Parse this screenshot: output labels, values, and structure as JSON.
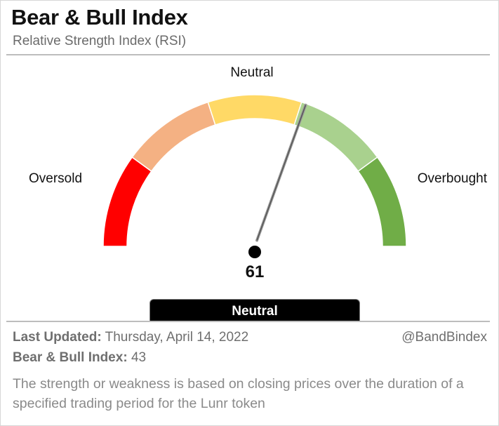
{
  "header": {
    "title": "Bear & Bull Index",
    "subtitle": "Relative Strength Index (RSI)"
  },
  "chart_data": {
    "type": "gauge",
    "min": 0,
    "max": 100,
    "value": 61,
    "value_label": "61",
    "status": "Neutral",
    "zone_labels": {
      "left": "Oversold",
      "top": "Neutral",
      "right": "Overbought"
    },
    "segments": [
      {
        "from": 0,
        "to": 20,
        "color": "#ff0000"
      },
      {
        "from": 20,
        "to": 40,
        "color": "#f4b183"
      },
      {
        "from": 40,
        "to": 60,
        "color": "#ffd966"
      },
      {
        "from": 60,
        "to": 80,
        "color": "#a9d18e"
      },
      {
        "from": 80,
        "to": 100,
        "color": "#70ad47"
      }
    ],
    "needle_color": "#555555"
  },
  "footer": {
    "last_updated_label": "Last Updated:",
    "last_updated_value": "Thursday, April 14, 2022",
    "index_label": "Bear & Bull Index:",
    "index_value": "43",
    "handle": "@BandBindex",
    "description": "The strength or weakness is based on closing prices over the duration of a specified trading period for the Lunr token"
  }
}
